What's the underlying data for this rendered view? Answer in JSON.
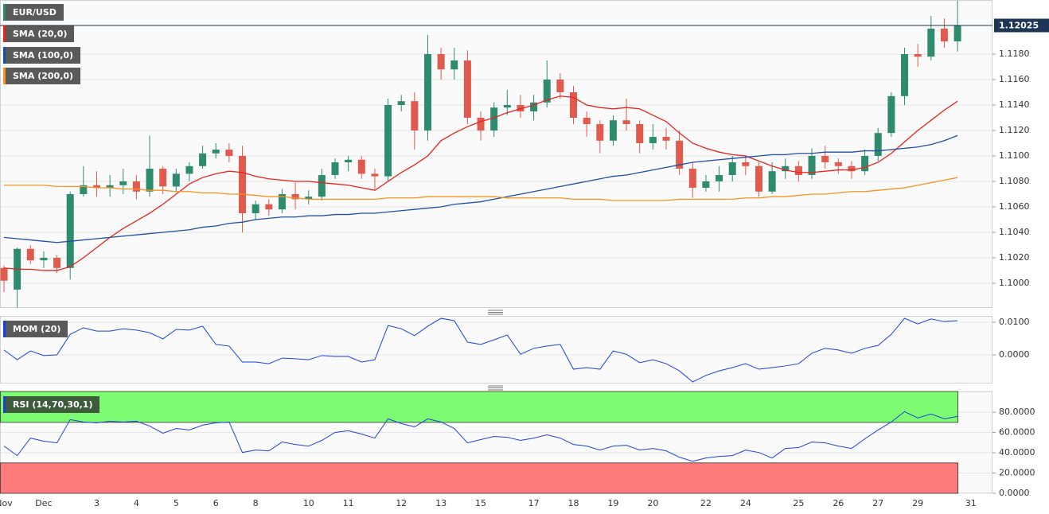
{
  "chart_data": [
    {
      "type": "candlestick",
      "name": "EUR/USD",
      "up_color": "#2e8b6e",
      "down_color": "#e05a4e",
      "categories": [
        "Nov",
        null,
        null,
        "Dec",
        null,
        null,
        null,
        "3",
        null,
        null,
        "4",
        null,
        null,
        "5",
        null,
        null,
        "6",
        null,
        null,
        "8",
        null,
        null,
        null,
        "10",
        null,
        null,
        "11",
        null,
        null,
        null,
        "12",
        null,
        null,
        "13",
        null,
        null,
        "15",
        null,
        null,
        null,
        "17",
        null,
        null,
        "18",
        null,
        null,
        "19",
        null,
        null,
        "20",
        null,
        null,
        null,
        "22",
        null,
        null,
        "24",
        null,
        null,
        null,
        "25",
        null,
        null,
        "26",
        null,
        null,
        "27",
        null,
        null,
        "29",
        null,
        null,
        null,
        "31"
      ],
      "open": [
        1.1012,
        1.0995,
        1.1027,
        1.1018,
        1.102,
        1.1012,
        1.107,
        1.1077,
        1.1075,
        1.1077,
        1.108,
        1.1072,
        1.109,
        1.1076,
        1.1086,
        1.1092,
        1.1102,
        1.1105,
        1.11,
        1.1055,
        1.1062,
        1.1058,
        1.107,
        1.1066,
        1.1068,
        1.1085,
        1.1095,
        1.1097,
        1.1086,
        1.1084,
        1.114,
        1.1143,
        1.112,
        1.118,
        1.1168,
        1.1175,
        1.113,
        1.112,
        1.1138,
        1.114,
        1.1135,
        1.1142,
        1.116,
        1.115,
        1.113,
        1.1125,
        1.1112,
        1.1128,
        1.1125,
        1.111,
        1.1115,
        1.1112,
        1.109,
        1.1075,
        1.108,
        1.1085,
        1.1095,
        1.1092,
        1.1072,
        1.1088,
        1.1092,
        1.1085,
        1.11,
        1.1095,
        1.1092,
        1.1088,
        1.11,
        1.1118,
        1.1147,
        1.118,
        1.1178,
        1.12,
        1.119,
        null
      ],
      "high": [
        1.1014,
        1.1028,
        1.103,
        1.1025,
        1.1022,
        1.1072,
        1.1092,
        1.1088,
        1.1085,
        1.109,
        1.1085,
        1.1116,
        1.1092,
        1.109,
        1.1095,
        1.1108,
        1.111,
        1.111,
        1.1108,
        1.1065,
        1.1066,
        1.1074,
        1.1079,
        1.1073,
        1.109,
        1.1098,
        1.11,
        1.11,
        1.109,
        1.1145,
        1.1148,
        1.115,
        1.1195,
        1.1185,
        1.1185,
        1.1183,
        1.1135,
        1.1142,
        1.1152,
        1.1148,
        1.1148,
        1.1175,
        1.1165,
        1.1155,
        1.1135,
        1.1128,
        1.1132,
        1.1145,
        1.1128,
        1.1125,
        1.1122,
        1.112,
        1.1095,
        1.1085,
        1.1092,
        1.11,
        1.11,
        1.1095,
        1.1095,
        1.1098,
        1.1096,
        1.1106,
        1.1108,
        1.1098,
        1.1096,
        1.1105,
        1.1122,
        1.115,
        1.1185,
        1.1188,
        1.121,
        1.1208,
        1.1222,
        null
      ],
      "low": [
        1.0993,
        1.0981,
        1.1015,
        1.1012,
        1.1008,
        1.1003,
        1.1068,
        1.1068,
        1.1068,
        1.107,
        1.1066,
        1.1068,
        1.107,
        1.1072,
        1.108,
        1.109,
        1.1098,
        1.1095,
        1.104,
        1.105,
        1.1053,
        1.1055,
        1.1058,
        1.1062,
        1.1065,
        1.1082,
        1.1088,
        1.1082,
        1.1074,
        1.108,
        1.1135,
        1.1105,
        1.1112,
        1.116,
        1.116,
        1.1125,
        1.1112,
        1.1115,
        1.1132,
        1.113,
        1.1128,
        1.1138,
        1.1145,
        1.1125,
        1.1115,
        1.1102,
        1.1108,
        1.112,
        1.1102,
        1.1105,
        1.1105,
        1.1085,
        1.1067,
        1.1072,
        1.1072,
        1.108,
        1.1085,
        1.1068,
        1.107,
        1.1082,
        1.108,
        1.1082,
        1.109,
        1.1086,
        1.1082,
        1.1085,
        1.1096,
        1.1115,
        1.114,
        1.117,
        1.1175,
        1.1185,
        1.1182,
        null
      ],
      "close": [
        1.1002,
        1.1027,
        1.1018,
        1.102,
        1.1012,
        1.107,
        1.1077,
        1.1075,
        1.1077,
        1.108,
        1.1072,
        1.109,
        1.1076,
        1.1086,
        1.1092,
        1.1102,
        1.1105,
        1.11,
        1.1055,
        1.1062,
        1.1058,
        1.107,
        1.1066,
        1.1068,
        1.1085,
        1.1095,
        1.1097,
        1.1086,
        1.1084,
        1.114,
        1.1143,
        1.112,
        1.118,
        1.1168,
        1.1175,
        1.113,
        1.112,
        1.1138,
        1.114,
        1.1135,
        1.1142,
        1.116,
        1.115,
        1.113,
        1.1125,
        1.1112,
        1.1128,
        1.1125,
        1.111,
        1.1115,
        1.1112,
        1.109,
        1.1075,
        1.108,
        1.1085,
        1.1095,
        1.1092,
        1.1072,
        1.1088,
        1.1092,
        1.1085,
        1.11,
        1.1095,
        1.1092,
        1.1088,
        1.11,
        1.1118,
        1.1147,
        1.118,
        1.1178,
        1.12,
        1.119,
        1.12025,
        null
      ],
      "series": [
        {
          "name": "SMA (20,0)",
          "color": "#e8231d",
          "values": [
            1.1012,
            1.1011,
            1.1011,
            1.101,
            1.101,
            1.1013,
            1.102,
            1.1028,
            1.1036,
            1.1043,
            1.1049,
            1.1055,
            1.1062,
            1.107,
            1.1078,
            1.1083,
            1.1086,
            1.1088,
            1.1087,
            1.1084,
            1.1082,
            1.1081,
            1.108,
            1.108,
            1.1079,
            1.1078,
            1.1077,
            1.1075,
            1.1073,
            1.108,
            1.1087,
            1.1093,
            1.11,
            1.1112,
            1.1118,
            1.1123,
            1.1127,
            1.113,
            1.1134,
            1.1137,
            1.114,
            1.1144,
            1.1147,
            1.1146,
            1.114,
            1.1138,
            1.1137,
            1.1138,
            1.1137,
            1.1132,
            1.1127,
            1.1118,
            1.111,
            1.1106,
            1.1103,
            1.1101,
            1.11,
            1.1096,
            1.1092,
            1.1089,
            1.1087,
            1.1087,
            1.1088,
            1.1089,
            1.1089,
            1.1091,
            1.1095,
            1.1102,
            1.1111,
            1.112,
            1.1128,
            1.1136,
            1.1143,
            null
          ]
        },
        {
          "name": "SMA (100,0)",
          "color": "#1f4fa0",
          "values": [
            1.1036,
            1.1035,
            1.1034,
            1.1033,
            1.1032,
            1.1033,
            1.1034,
            1.1035,
            1.1036,
            1.1037,
            1.1038,
            1.1039,
            1.104,
            1.1041,
            1.1042,
            1.1044,
            1.1045,
            1.1047,
            1.1048,
            1.105,
            1.1051,
            1.1052,
            1.1052,
            1.1053,
            1.1053,
            1.1054,
            1.1054,
            1.1055,
            1.1055,
            1.1056,
            1.1057,
            1.1058,
            1.1059,
            1.106,
            1.1062,
            1.1063,
            1.1064,
            1.1066,
            1.1068,
            1.107,
            1.1072,
            1.1074,
            1.1076,
            1.1078,
            1.108,
            1.1082,
            1.1084,
            1.1085,
            1.1087,
            1.1089,
            1.1091,
            1.1093,
            1.1095,
            1.1096,
            1.1097,
            1.1098,
            1.1099,
            1.11,
            1.1101,
            1.1101,
            1.1102,
            1.1102,
            1.1103,
            1.1103,
            1.1103,
            1.1104,
            1.1104,
            1.1105,
            1.1106,
            1.1107,
            1.1109,
            1.1112,
            1.1116,
            null
          ]
        },
        {
          "name": "SMA (200,0)",
          "color": "#f5931e",
          "values": [
            1.1077,
            1.1077,
            1.1077,
            1.1077,
            1.1076,
            1.1076,
            1.1076,
            1.1075,
            1.1075,
            1.1074,
            1.1074,
            1.1073,
            1.1073,
            1.1072,
            1.1072,
            1.1071,
            1.1071,
            1.107,
            1.107,
            1.1069,
            1.1068,
            1.1068,
            1.1067,
            1.1066,
            1.1066,
            1.1066,
            1.1066,
            1.1066,
            1.1066,
            1.1067,
            1.1067,
            1.1067,
            1.1068,
            1.1068,
            1.1068,
            1.1068,
            1.1068,
            1.1068,
            1.1067,
            1.1067,
            1.1067,
            1.1067,
            1.1067,
            1.1066,
            1.1066,
            1.1066,
            1.1065,
            1.1065,
            1.1065,
            1.1065,
            1.1065,
            1.1066,
            1.1066,
            1.1066,
            1.1066,
            1.1066,
            1.1067,
            1.1067,
            1.1068,
            1.1068,
            1.1069,
            1.107,
            1.107,
            1.1071,
            1.1072,
            1.1072,
            1.1073,
            1.1074,
            1.1075,
            1.1077,
            1.1079,
            1.1081,
            1.1083,
            null
          ]
        }
      ],
      "last_price": 1.12025,
      "last_price_color": "#1e3556",
      "ylim": [
        1.09806,
        1.12225
      ],
      "yticks": [
        {
          "value": 1.1,
          "label": "1.1000"
        },
        {
          "value": 1.102,
          "label": "1.1020"
        },
        {
          "value": 1.104,
          "label": "1.1040"
        },
        {
          "value": 1.106,
          "label": "1.1060"
        },
        {
          "value": 1.108,
          "label": "1.1080"
        },
        {
          "value": 1.11,
          "label": "1.1100"
        },
        {
          "value": 1.112,
          "label": "1.1120"
        },
        {
          "value": 1.114,
          "label": "1.1140"
        },
        {
          "value": 1.116,
          "label": "1.1160"
        },
        {
          "value": 1.118,
          "label": "1.1180"
        }
      ],
      "grid": true
    },
    {
      "type": "line",
      "series": [
        {
          "name": "MOM (20)",
          "color": "#1a3fe0",
          "values": [
            0.0015,
            -0.0015,
            0.0012,
            -0.0002,
            0.0,
            0.0063,
            0.0083,
            0.0073,
            0.0073,
            0.008,
            0.0076,
            0.0068,
            0.0049,
            0.0078,
            0.0076,
            0.0088,
            0.0032,
            0.0027,
            -0.0022,
            -0.0022,
            -0.0027,
            -0.001,
            -0.0012,
            -0.0015,
            -0.0002,
            -0.0005,
            -0.0005,
            -0.0022,
            -0.0015,
            0.009,
            0.008,
            0.0059,
            0.0088,
            0.0112,
            0.0105,
            0.0039,
            0.0032,
            0.0046,
            0.0061,
            0.0002,
            0.002,
            0.0027,
            0.0032,
            -0.0044,
            -0.0039,
            -0.0044,
            0.0012,
            0.0002,
            -0.0024,
            -0.0015,
            -0.0027,
            -0.0049,
            -0.0083,
            -0.0063,
            -0.0049,
            -0.0039,
            -0.0027,
            -0.0044,
            -0.0039,
            -0.0034,
            -0.0027,
            0.0005,
            0.002,
            0.0015,
            0.0005,
            0.002,
            0.0029,
            0.0063,
            0.0112,
            0.0095,
            0.011,
            0.0102,
            0.0105,
            null
          ]
        }
      ],
      "ylim": [
        -0.00878,
        0.01195
      ],
      "yticks": [
        {
          "value": 0,
          "label": "0.0000"
        },
        {
          "value": 0.01,
          "label": "0.0100"
        }
      ],
      "grid": true
    },
    {
      "type": "line",
      "series": [
        {
          "name": "RSI (14,70,30,1)",
          "color": "#2140d8",
          "values": [
            46.6,
            37.2,
            54.5,
            51.4,
            49.8,
            72.7,
            70.4,
            69.6,
            71.1,
            70.4,
            71.1,
            66.4,
            59.3,
            64.0,
            62.5,
            67.2,
            69.6,
            70.4,
            40.3,
            42.7,
            41.9,
            50.6,
            48.2,
            46.6,
            52.2,
            60.1,
            61.7,
            58.5,
            54.5,
            73.5,
            68.8,
            65.6,
            73.5,
            70.4,
            64.0,
            49.8,
            53.0,
            56.1,
            55.3,
            52.2,
            54.5,
            57.7,
            54.5,
            48.2,
            46.6,
            42.7,
            46.6,
            47.4,
            42.7,
            44.3,
            41.9,
            35.6,
            31.6,
            34.8,
            36.4,
            37.2,
            42.7,
            40.3,
            34.8,
            44.3,
            45.1,
            50.6,
            49.8,
            46.6,
            44.3,
            53.8,
            62.5,
            70.4,
            80.6,
            74.3,
            78.3,
            73.5,
            75.9,
            null
          ]
        }
      ],
      "overbought": 70,
      "oversold": 30,
      "overbought_color": "#7dfc73",
      "oversold_color": "#ff7b7b",
      "ylim": [
        0,
        100.5
      ],
      "yticks": [
        {
          "value": 0,
          "label": "0.0000"
        },
        {
          "value": 20,
          "label": "20.0000"
        },
        {
          "value": 40,
          "label": "40.0000"
        },
        {
          "value": 60,
          "label": "60.0000"
        },
        {
          "value": 80,
          "label": "80.0000"
        }
      ],
      "grid": true
    }
  ]
}
